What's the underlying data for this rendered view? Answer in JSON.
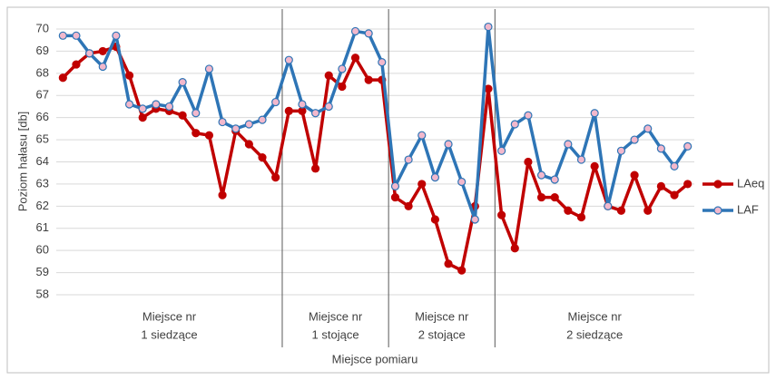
{
  "chart_data": {
    "type": "line",
    "y_label": "Poziom hałasu [db]",
    "x_label": "Miejsce pomiaru",
    "ylim": [
      58,
      70
    ],
    "yticks": [
      58,
      59,
      60,
      61,
      62,
      63,
      64,
      65,
      66,
      67,
      68,
      69,
      70
    ],
    "grid": true,
    "legend": "right",
    "category_groups": [
      {
        "label": [
          "Miejsce nr",
          "1 siedzące"
        ],
        "categories": [
          null,
          null,
          null,
          null,
          null,
          null,
          null,
          null,
          null,
          null,
          null,
          null,
          null,
          null,
          null,
          null,
          null
        ]
      },
      {
        "label": [
          "Miejsce nr",
          "1 stojące"
        ],
        "categories": [
          null,
          null,
          null,
          null,
          null,
          null,
          null,
          null
        ]
      },
      {
        "label": [
          "Miejsce nr",
          "2 stojące"
        ],
        "categories": [
          null,
          null,
          null,
          null,
          null,
          null,
          null,
          null
        ]
      },
      {
        "label": [
          "Miejsce nr",
          "2 siedzące"
        ],
        "categories": [
          null,
          null,
          null,
          null,
          null,
          null,
          null,
          null,
          null,
          null,
          null,
          null,
          null,
          null,
          null
        ]
      }
    ],
    "series": [
      {
        "name": "LAeq",
        "color": "#c00000",
        "marker_fill": "#c00000",
        "values": [
          67.8,
          68.4,
          68.9,
          69.0,
          69.2,
          67.9,
          66.0,
          66.4,
          66.3,
          66.1,
          65.3,
          65.2,
          62.5,
          65.4,
          64.8,
          64.2,
          63.3,
          66.3,
          66.3,
          63.7,
          67.9,
          67.4,
          68.7,
          67.7,
          67.7,
          62.4,
          62.0,
          63.0,
          61.4,
          59.4,
          59.1,
          62.0,
          67.3,
          61.6,
          60.1,
          64.0,
          62.4,
          62.4,
          61.8,
          61.5,
          63.8,
          62.0,
          61.8,
          63.4,
          61.8,
          62.9,
          62.5,
          63.0
        ]
      },
      {
        "name": "LAF",
        "color": "#2e75b6",
        "marker_fill": "#f2b8cc",
        "values": [
          69.7,
          69.7,
          68.9,
          68.3,
          69.7,
          66.6,
          66.4,
          66.6,
          66.5,
          67.6,
          66.2,
          68.2,
          65.8,
          65.5,
          65.7,
          65.9,
          66.7,
          68.6,
          66.6,
          66.2,
          66.5,
          68.2,
          69.9,
          69.8,
          68.5,
          62.9,
          64.1,
          65.2,
          63.3,
          64.8,
          63.1,
          61.4,
          70.1,
          64.5,
          65.7,
          66.1,
          63.4,
          63.2,
          64.8,
          64.1,
          66.2,
          62.0,
          64.5,
          65.0,
          65.5,
          64.6,
          63.8,
          64.7
        ]
      }
    ]
  }
}
